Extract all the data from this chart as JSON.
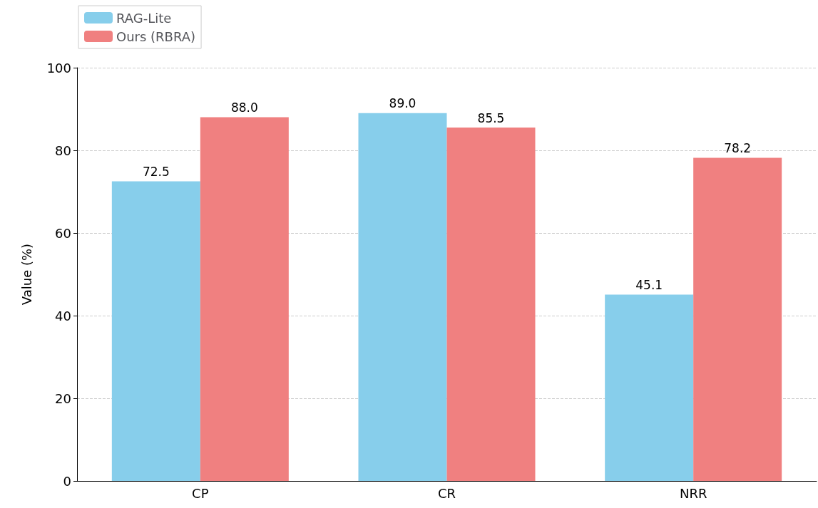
{
  "chart_data": {
    "type": "bar",
    "ylabel": "Value (%)",
    "categories": [
      "CP",
      "CR",
      "NRR"
    ],
    "series": [
      {
        "name": "RAG-Lite",
        "color": "#87ceeb",
        "values": [
          72.5,
          89.0,
          45.1
        ],
        "value_labels": [
          "72.5",
          "89.0",
          "45.1"
        ]
      },
      {
        "name": "Ours (RBRA)",
        "color": "#f08080",
        "values": [
          88.0,
          85.5,
          78.2
        ],
        "value_labels": [
          "88.0",
          "85.5",
          "78.2"
        ]
      }
    ],
    "ylim": [
      0,
      100
    ],
    "yticks": [
      0,
      20,
      40,
      60,
      80,
      100
    ],
    "grid": "y",
    "legend": "top left"
  }
}
